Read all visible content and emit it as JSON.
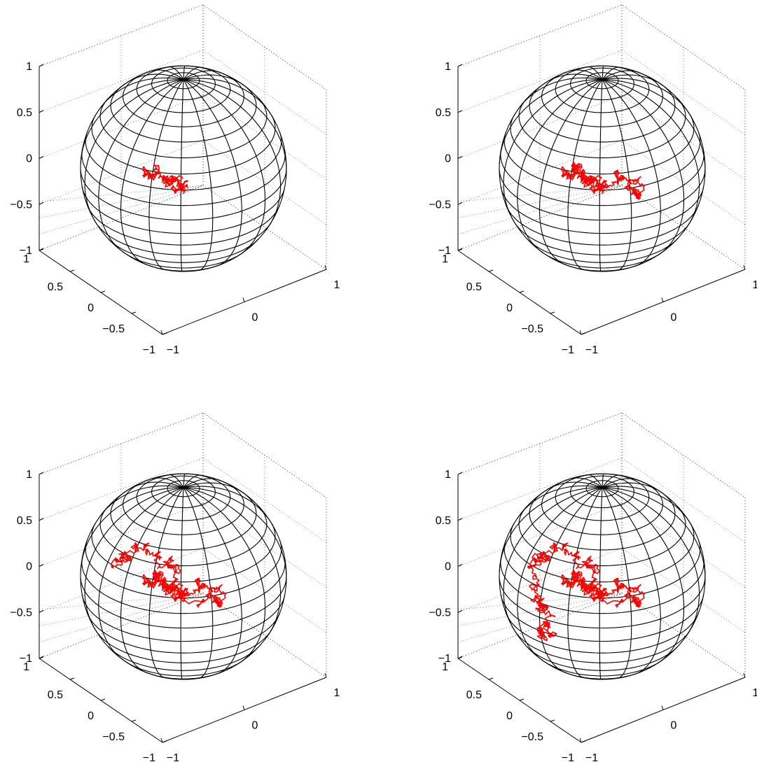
{
  "chart_data": {
    "type": "line",
    "panel_count": 4,
    "sphere": {
      "radius": 1,
      "grid": "wireframe",
      "color": "#000000"
    },
    "path_color": "#ff0000",
    "axes": {
      "xlim": [
        -1,
        1
      ],
      "ylim": [
        -1,
        1
      ],
      "zlim": [
        -1,
        1
      ],
      "x_ticks": [
        "−1",
        "0",
        "1"
      ],
      "y_ticks": [
        "−1",
        "−0.5",
        "0",
        "0.5",
        "1"
      ],
      "z_ticks": [
        "−1",
        "−0.5",
        "0",
        "0.5",
        "1"
      ],
      "grid": true
    },
    "panels": [
      {
        "steps": 1,
        "path_seed": 11
      },
      {
        "steps": 2,
        "path_seed": 11
      },
      {
        "steps": 3,
        "path_seed": 11
      },
      {
        "steps": 4,
        "path_seed": 11
      }
    ]
  }
}
